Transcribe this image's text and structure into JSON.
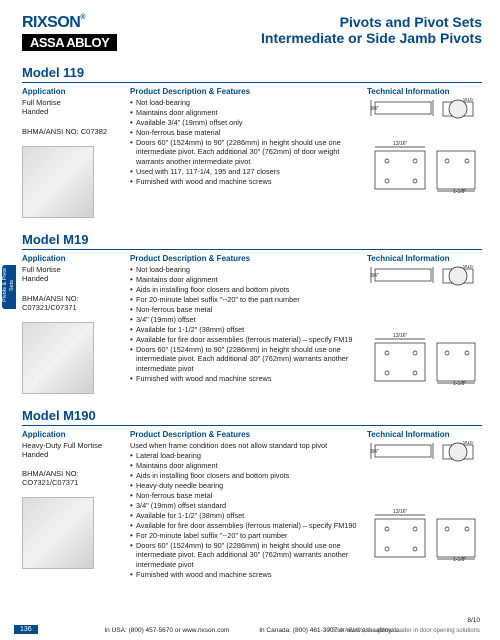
{
  "brand": {
    "rixson": "RIXSON",
    "reg": "®",
    "assa": "ASSA ABLOY"
  },
  "title1": "Pivots and Pivot Sets",
  "title2": "Intermediate or Side Jamb Pivots",
  "sidetab": "Pivots &\nPivot Sets",
  "labels": {
    "application": "Application",
    "features": "Product Description & Features",
    "technical": "Technical Information"
  },
  "models": [
    {
      "name": "Model 119",
      "application": [
        "Full Mortise",
        "Handed"
      ],
      "bhma": "BHMA/ANSI NO: C07382",
      "usedWhen": "",
      "features": [
        "Not load-bearing",
        "Maintains door alignment",
        "Available 3/4\" (19mm) offset only",
        "Non-ferrous base material",
        "Doors 60\" (1524mm) to 90\" (2286mm) in height should use one intermediate pivot. Each additional 30\" (762mm) of door weight warrants another intermediate pivot",
        "Used with 117, 117-1/4, 195 and 127 closers",
        "Furnished with wood and machine screws"
      ],
      "techTall": false
    },
    {
      "name": "Model M19",
      "application": [
        "Full Mortise",
        "Handed"
      ],
      "bhma": "BHMA/ANSI NO: C07321/C07371",
      "usedWhen": "",
      "features": [
        "Not load-bearing",
        "Maintains door alignment",
        "Aids in installing floor closers and bottom pivots",
        "For 20-minute label suffix \"--20\" to the part number",
        "Non-ferrous base metal",
        "3/4\" (19mm) offset",
        "Available for 1-1/2\" (38mm) offset",
        "Available for fire door assemblies (ferrous material) – specify FM19",
        "Doors 60\" (1524mm) to 90\" (2286mm) in height should use one intermediate pivot. Each additional 30\" (762mm) warrants another intermediate pivot",
        "Furnished with wood and machine screws"
      ],
      "techTall": true
    },
    {
      "name": "Model M190",
      "application": [
        "Heavy-Duty Full Mortise",
        "Handed"
      ],
      "bhma": "BHMA/ANSI NO: CO7321/C07371",
      "usedWhen": "Used when frame condition does not allow standard top pivot",
      "features": [
        "Lateral load-bearing",
        "Maintains door alignment",
        "Aids in installing floor closers and bottom pivots",
        "Heavy-duty needle bearing",
        "Non-ferrous base metal",
        "3/4\" (19mm) offset standard",
        "Available for 1-1/2\" (38mm) offset",
        "Available for fire door assemblies (ferrous material) – specify FM190",
        "For 20-minute label suffix \"--20\" to part number",
        "Doors 60\" (1524mm) to 90\" (2286mm) in height should use one intermediate pivot. Each additional 30\" (762mm) warrants another intermediate pivot",
        "Furnished with wood and machine screws"
      ],
      "techTall": true
    }
  ],
  "footer": {
    "usa": "In USA: (800) 457-5670  or  www.rixson.com",
    "canada": "In Canada: (800) 461-3007  or  www.assaabloy.ca",
    "date": "8/10",
    "tagline": "ASSA ABLOY, the global leader in door opening solutions",
    "page": "136"
  },
  "techDims": {
    "stroke": "#222",
    "strokeWidth": 0.7
  }
}
